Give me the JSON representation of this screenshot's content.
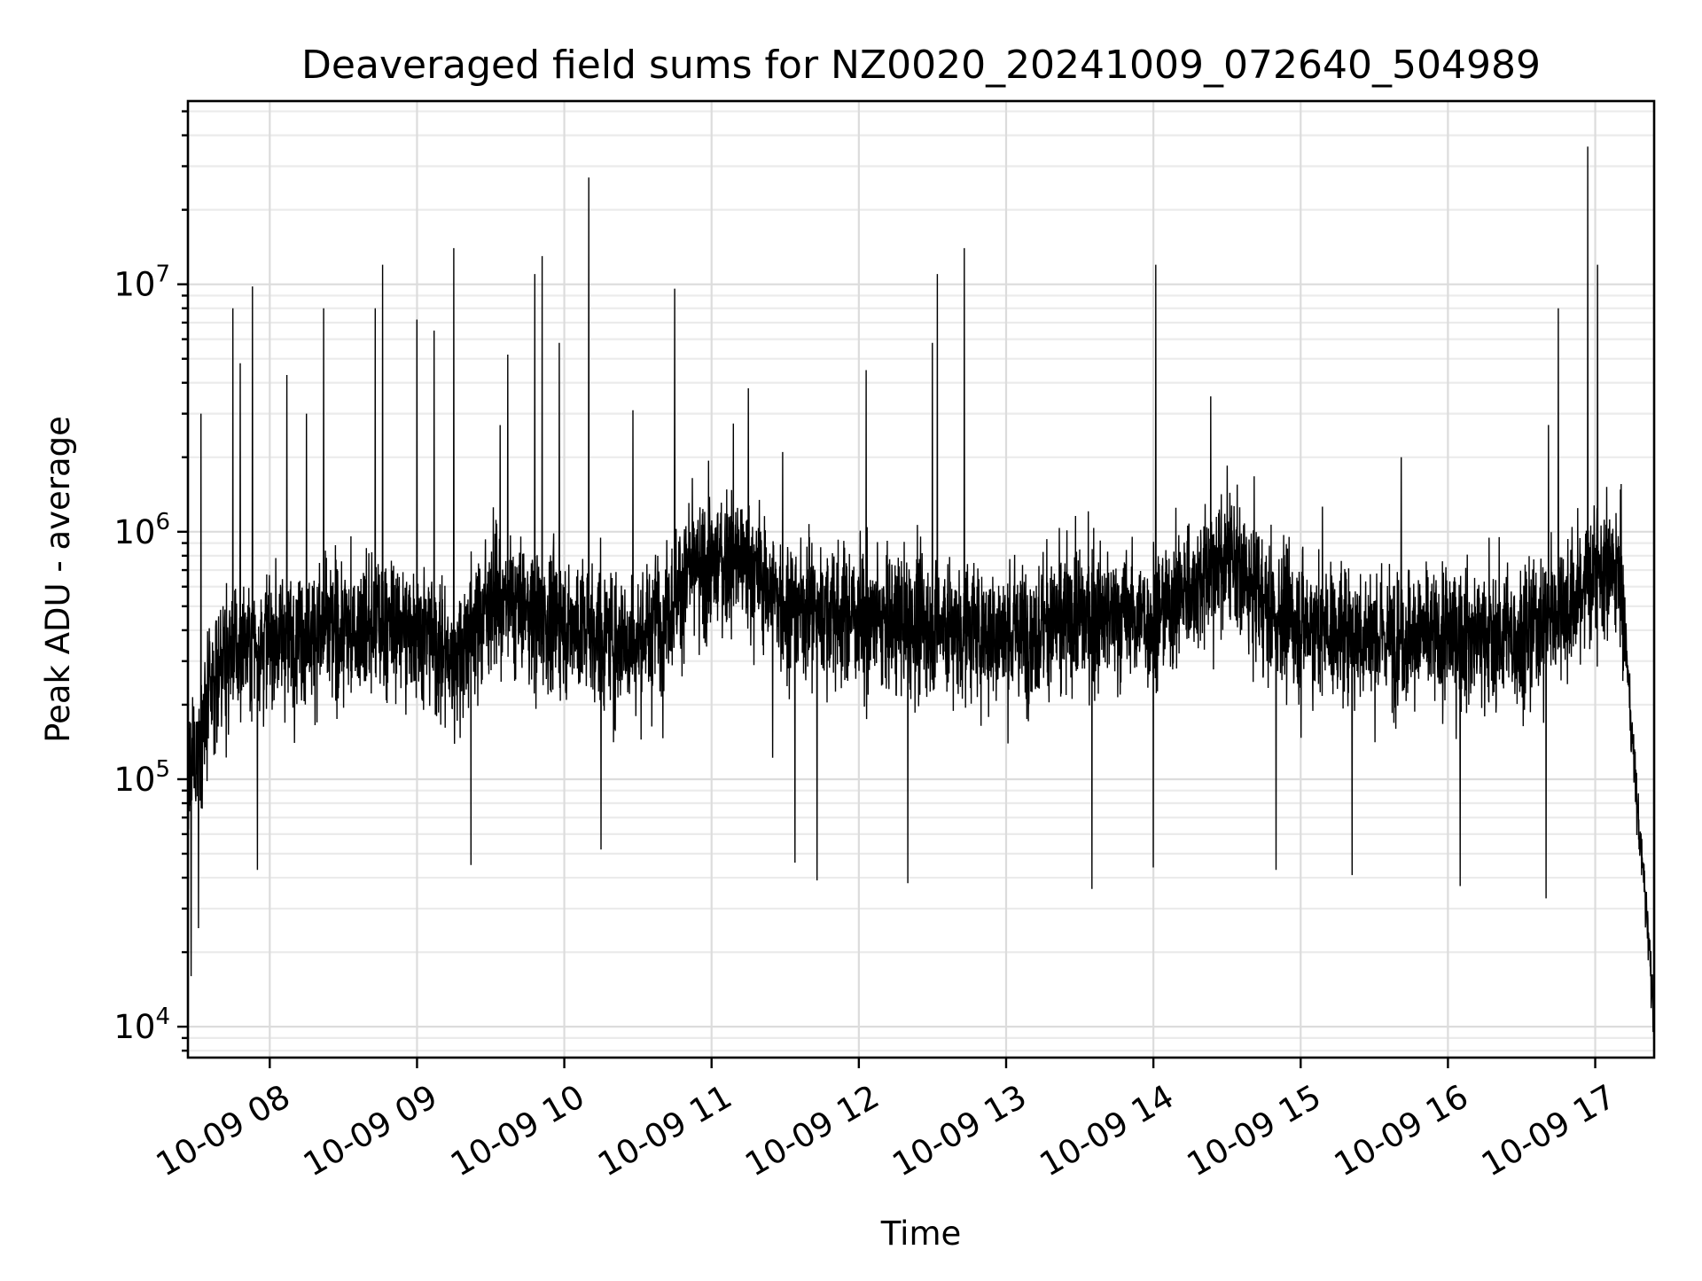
{
  "chart_data": {
    "type": "line",
    "title": "Deaveraged field sums for NZ0020_20241009_072640_504989",
    "xlabel": "Time",
    "ylabel": "Peak ADU - average",
    "yscale": "log",
    "ylim": [
      7500,
      55000000
    ],
    "xlim": [
      "2024-10-09 07:26:40",
      "2024-10-09 17:24:00"
    ],
    "grid": true,
    "grid_minor": true,
    "x_ticks": [
      {
        "time": "2024-10-09 08:00",
        "label": "10-09 08"
      },
      {
        "time": "2024-10-09 09:00",
        "label": "10-09 09"
      },
      {
        "time": "2024-10-09 10:00",
        "label": "10-09 10"
      },
      {
        "time": "2024-10-09 11:00",
        "label": "10-09 11"
      },
      {
        "time": "2024-10-09 12:00",
        "label": "10-09 12"
      },
      {
        "time": "2024-10-09 13:00",
        "label": "10-09 13"
      },
      {
        "time": "2024-10-09 14:00",
        "label": "10-09 14"
      },
      {
        "time": "2024-10-09 15:00",
        "label": "10-09 15"
      },
      {
        "time": "2024-10-09 16:00",
        "label": "10-09 16"
      },
      {
        "time": "2024-10-09 17:00",
        "label": "10-09 17"
      }
    ],
    "y_ticks": [
      {
        "value": 10000,
        "base": "10",
        "exp": "4"
      },
      {
        "value": 100000,
        "base": "10",
        "exp": "5"
      },
      {
        "value": 1000000,
        "base": "10",
        "exp": "6"
      },
      {
        "value": 10000000,
        "base": "10",
        "exp": "7"
      }
    ],
    "series": [
      {
        "color": "#000000",
        "baseline": [
          [
            "2024-10-09 07:26:40",
            100000
          ],
          [
            "2024-10-09 07:40",
            300000
          ],
          [
            "2024-10-09 08:00",
            380000
          ],
          [
            "2024-10-09 08:30",
            400000
          ],
          [
            "2024-10-09 09:00",
            420000
          ],
          [
            "2024-10-09 09:15",
            300000
          ],
          [
            "2024-10-09 09:30",
            550000
          ],
          [
            "2024-10-09 10:00",
            420000
          ],
          [
            "2024-10-09 10:30",
            350000
          ],
          [
            "2024-10-09 10:50",
            650000
          ],
          [
            "2024-10-09 11:10",
            800000
          ],
          [
            "2024-10-09 11:30",
            500000
          ],
          [
            "2024-10-09 12:00",
            450000
          ],
          [
            "2024-10-09 12:30",
            420000
          ],
          [
            "2024-10-09 13:00",
            380000
          ],
          [
            "2024-10-09 13:30",
            450000
          ],
          [
            "2024-10-09 14:00",
            450000
          ],
          [
            "2024-10-09 14:30",
            800000
          ],
          [
            "2024-10-09 14:45",
            500000
          ],
          [
            "2024-10-09 15:00",
            420000
          ],
          [
            "2024-10-09 15:30",
            380000
          ],
          [
            "2024-10-09 16:00",
            380000
          ],
          [
            "2024-10-09 16:30",
            380000
          ],
          [
            "2024-10-09 16:50",
            500000
          ],
          [
            "2024-10-09 17:00",
            700000
          ],
          [
            "2024-10-09 17:10",
            650000
          ],
          [
            "2024-10-09 17:13",
            300000
          ],
          [
            "2024-10-09 17:15",
            150000
          ],
          [
            "2024-10-09 17:18",
            60000
          ],
          [
            "2024-10-09 17:21",
            30000
          ],
          [
            "2024-10-09 17:24",
            11000
          ]
        ],
        "spikes": [
          [
            "2024-10-09 07:32",
            3000000
          ],
          [
            "2024-10-09 07:45",
            8000000
          ],
          [
            "2024-10-09 07:48",
            4800000
          ],
          [
            "2024-10-09 07:53",
            9800000
          ],
          [
            "2024-10-09 08:07",
            4300000
          ],
          [
            "2024-10-09 08:15",
            3000000
          ],
          [
            "2024-10-09 08:22",
            8000000
          ],
          [
            "2024-10-09 08:43",
            8000000
          ],
          [
            "2024-10-09 08:46",
            12000000
          ],
          [
            "2024-10-09 09:00",
            7200000
          ],
          [
            "2024-10-09 09:07",
            6500000
          ],
          [
            "2024-10-09 09:15",
            14000000
          ],
          [
            "2024-10-09 09:37",
            5200000
          ],
          [
            "2024-10-09 09:48",
            11000000
          ],
          [
            "2024-10-09 09:51",
            13000000
          ],
          [
            "2024-10-09 09:58",
            5800000
          ],
          [
            "2024-10-09 10:10",
            27000000
          ],
          [
            "2024-10-09 10:28",
            3100000
          ],
          [
            "2024-10-09 10:45",
            9600000
          ],
          [
            "2024-10-09 11:15",
            3800000
          ],
          [
            "2024-10-09 11:29",
            2100000
          ],
          [
            "2024-10-09 12:03",
            4500000
          ],
          [
            "2024-10-09 12:30",
            5800000
          ],
          [
            "2024-10-09 12:32",
            11000000
          ],
          [
            "2024-10-09 12:43",
            14000000
          ],
          [
            "2024-10-09 14:01",
            12000000
          ],
          [
            "2024-10-09 15:41",
            2000000
          ],
          [
            "2024-10-09 16:41",
            2700000
          ],
          [
            "2024-10-09 16:45",
            8000000
          ],
          [
            "2024-10-09 16:57",
            36000000
          ],
          [
            "2024-10-09 17:01",
            12000000
          ]
        ],
        "dips": [
          [
            "2024-10-09 07:28",
            16000
          ],
          [
            "2024-10-09 07:31",
            25000
          ],
          [
            "2024-10-09 07:55",
            43000
          ],
          [
            "2024-10-09 09:22",
            45000
          ],
          [
            "2024-10-09 10:15",
            52000
          ],
          [
            "2024-10-09 11:34",
            46000
          ],
          [
            "2024-10-09 11:43",
            39000
          ],
          [
            "2024-10-09 12:20",
            38000
          ],
          [
            "2024-10-09 13:35",
            36000
          ],
          [
            "2024-10-09 14:00",
            44000
          ],
          [
            "2024-10-09 14:50",
            43000
          ],
          [
            "2024-10-09 15:21",
            41000
          ],
          [
            "2024-10-09 16:05",
            37000
          ],
          [
            "2024-10-09 16:40",
            33000
          ]
        ]
      }
    ]
  }
}
